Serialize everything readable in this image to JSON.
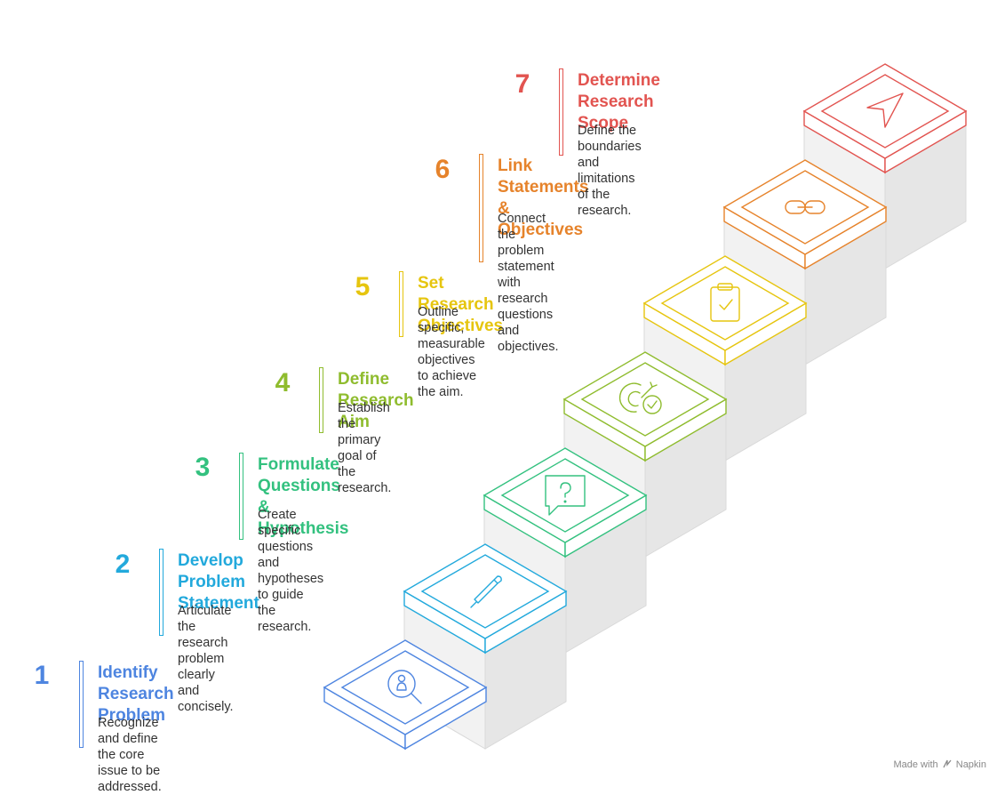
{
  "steps": [
    {
      "number": "1",
      "title": "Identify Research\nProblem",
      "description": "Recognize and define the core\nissue to be addressed.",
      "color": "#4e85e0",
      "icon": "person-search-icon"
    },
    {
      "number": "2",
      "title": "Develop Problem\nStatement",
      "description": "Articulate the research problem\nclearly and concisely.",
      "color": "#22a9dc",
      "icon": "pen-icon"
    },
    {
      "number": "3",
      "title": "Formulate Questions &\nHypothesis",
      "description": "Create specific questions and\nhypotheses to guide the research.",
      "color": "#33c17f",
      "icon": "question-bubble-icon"
    },
    {
      "number": "4",
      "title": "Define Research Aim",
      "description": "Establish the primary goal of the\nresearch.",
      "color": "#8fbc2e",
      "icon": "target-check-icon"
    },
    {
      "number": "5",
      "title": "Set Research Objectives",
      "description": "Outline specific, measurable\nobjectives to achieve the aim.",
      "color": "#e6c50f",
      "icon": "clipboard-check-icon"
    },
    {
      "number": "6",
      "title": "Link Statements &\nObjectives",
      "description": "Connect the problem statement\nwith research questions and\nobjectives.",
      "color": "#e6832b",
      "icon": "link-icon"
    },
    {
      "number": "7",
      "title": "Determine Research\nScope",
      "description": "Define the boundaries and\nlimitations of the research.",
      "color": "#e25450",
      "icon": "navigation-arrow-icon"
    }
  ],
  "footer": {
    "made_with": "Made with",
    "brand": "Napkin"
  }
}
